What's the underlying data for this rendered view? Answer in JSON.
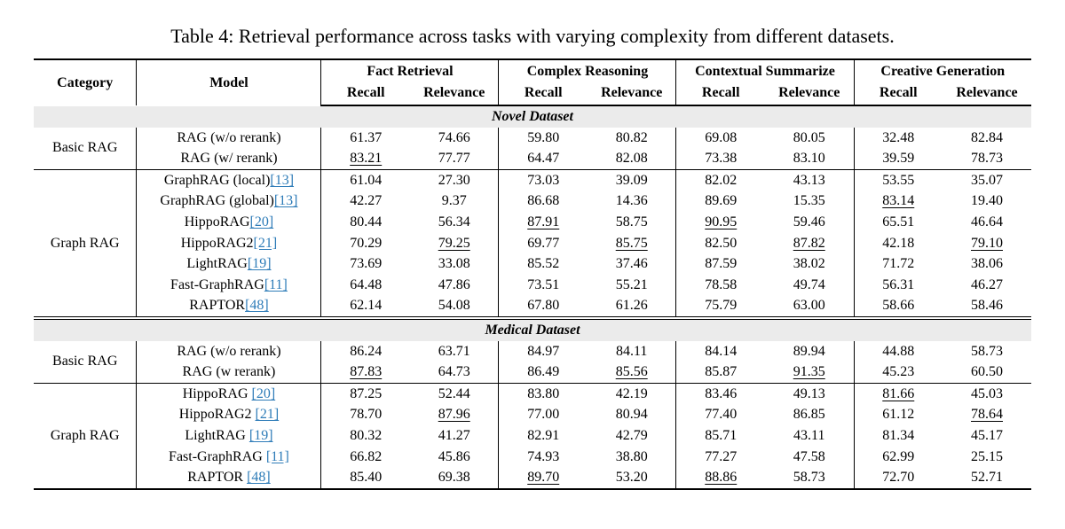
{
  "page": {
    "caption": "Table 4: Retrieval performance across tasks with varying complexity from different datasets."
  },
  "colors": {
    "citation": "#2e7cb8",
    "band_background": "#ebebeb",
    "rule": "#000000"
  },
  "table": {
    "columns": {
      "category": "Category",
      "model": "Model",
      "groups": [
        {
          "label": "Fact Retrieval",
          "subs": [
            "Recall",
            "Relevance"
          ]
        },
        {
          "label": "Complex Reasoning",
          "subs": [
            "Recall",
            "Relevance"
          ]
        },
        {
          "label": "Contextual Summarize",
          "subs": [
            "Recall",
            "Relevance"
          ]
        },
        {
          "label": "Creative Generation",
          "subs": [
            "Recall",
            "Relevance"
          ]
        }
      ]
    },
    "sections": [
      {
        "dataset": "Novel Dataset",
        "blocks": [
          {
            "category": "Basic RAG",
            "rows": [
              {
                "model": "RAG (w/o rerank)",
                "cite": "",
                "values": [
                  "61.37",
                  "74.66",
                  "59.80",
                  "80.82",
                  "69.08",
                  "80.05",
                  "32.48",
                  "82.84"
                ],
                "underline": []
              },
              {
                "model": "RAG (w/ rerank)",
                "cite": "",
                "values": [
                  "83.21",
                  "77.77",
                  "64.47",
                  "82.08",
                  "73.38",
                  "83.10",
                  "39.59",
                  "78.73"
                ],
                "underline": [
                  0
                ]
              }
            ]
          },
          {
            "category": "Graph RAG",
            "rows": [
              {
                "model": "GraphRAG (local)",
                "cite": "[13]",
                "values": [
                  "61.04",
                  "27.30",
                  "73.03",
                  "39.09",
                  "82.02",
                  "43.13",
                  "53.55",
                  "35.07"
                ],
                "underline": []
              },
              {
                "model": "GraphRAG (global)",
                "cite": "[13]",
                "values": [
                  "42.27",
                  "9.37",
                  "86.68",
                  "14.36",
                  "89.69",
                  "15.35",
                  "83.14",
                  "19.40"
                ],
                "underline": [
                  6
                ]
              },
              {
                "model": "HippoRAG",
                "cite": "[20]",
                "values": [
                  "80.44",
                  "56.34",
                  "87.91",
                  "58.75",
                  "90.95",
                  "59.46",
                  "65.51",
                  "46.64"
                ],
                "underline": [
                  2,
                  4
                ]
              },
              {
                "model": "HippoRAG2",
                "cite": "[21]",
                "values": [
                  "70.29",
                  "79.25",
                  "69.77",
                  "85.75",
                  "82.50",
                  "87.82",
                  "42.18",
                  "79.10"
                ],
                "underline": [
                  1,
                  3,
                  5,
                  7
                ]
              },
              {
                "model": "LightRAG",
                "cite": "[19]",
                "values": [
                  "73.69",
                  "33.08",
                  "85.52",
                  "37.46",
                  "87.59",
                  "38.02",
                  "71.72",
                  "38.06"
                ],
                "underline": []
              },
              {
                "model": "Fast-GraphRAG",
                "cite": "[11]",
                "values": [
                  "64.48",
                  "47.86",
                  "73.51",
                  "55.21",
                  "78.58",
                  "49.74",
                  "56.31",
                  "46.27"
                ],
                "underline": []
              },
              {
                "model": "RAPTOR",
                "cite": "[48]",
                "values": [
                  "62.14",
                  "54.08",
                  "67.80",
                  "61.26",
                  "75.79",
                  "63.00",
                  "58.66",
                  "58.46"
                ],
                "underline": []
              }
            ]
          }
        ]
      },
      {
        "dataset": "Medical Dataset",
        "blocks": [
          {
            "category": "Basic RAG",
            "rows": [
              {
                "model": "RAG (w/o rerank)",
                "cite": "",
                "values": [
                  "86.24",
                  "63.71",
                  "84.97",
                  "84.11",
                  "84.14",
                  "89.94",
                  "44.88",
                  "58.73"
                ],
                "underline": []
              },
              {
                "model": "RAG (w rerank)",
                "cite": "",
                "values": [
                  "87.83",
                  "64.73",
                  "86.49",
                  "85.56",
                  "85.87",
                  "91.35",
                  "45.23",
                  "60.50"
                ],
                "underline": [
                  0,
                  3,
                  5
                ]
              }
            ]
          },
          {
            "category": "Graph RAG",
            "rows": [
              {
                "model": "HippoRAG ",
                "cite": "[20]",
                "values": [
                  "87.25",
                  "52.44",
                  "83.80",
                  "42.19",
                  "83.46",
                  "49.13",
                  "81.66",
                  "45.03"
                ],
                "underline": [
                  6
                ]
              },
              {
                "model": "HippoRAG2 ",
                "cite": "[21]",
                "values": [
                  "78.70",
                  "87.96",
                  "77.00",
                  "80.94",
                  "77.40",
                  "86.85",
                  "61.12",
                  "78.64"
                ],
                "underline": [
                  1,
                  7
                ]
              },
              {
                "model": "LightRAG ",
                "cite": "[19]",
                "values": [
                  "80.32",
                  "41.27",
                  "82.91",
                  "42.79",
                  "85.71",
                  "43.11",
                  "81.34",
                  "45.17"
                ],
                "underline": []
              },
              {
                "model": "Fast-GraphRAG ",
                "cite": "[11]",
                "values": [
                  "66.82",
                  "45.86",
                  "74.93",
                  "38.80",
                  "77.27",
                  "47.58",
                  "62.99",
                  "25.15"
                ],
                "underline": []
              },
              {
                "model": "RAPTOR ",
                "cite": "[48]",
                "values": [
                  "85.40",
                  "69.38",
                  "89.70",
                  "53.20",
                  "88.86",
                  "58.73",
                  "72.70",
                  "52.71"
                ],
                "underline": [
                  2,
                  4
                ]
              }
            ]
          }
        ]
      }
    ]
  }
}
